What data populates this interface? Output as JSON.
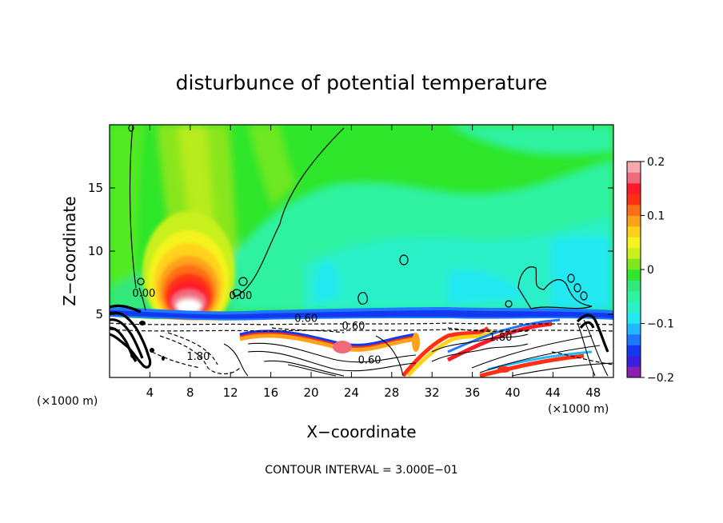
{
  "chart_data": {
    "type": "heatmap",
    "title": "disturbunce of potential temperature",
    "xlabel": "X−coordinate",
    "ylabel": "Z−coordinate",
    "x_unit": "(×1000 m)",
    "z_unit": "(×1000 m)",
    "xlim": [
      0,
      50
    ],
    "ylim": [
      0,
      20
    ],
    "xticks": [
      4,
      8,
      12,
      16,
      20,
      24,
      28,
      32,
      36,
      40,
      44,
      48
    ],
    "yticks": [
      5,
      10,
      15
    ],
    "xtick_labels": [
      "4",
      "8",
      "12",
      "16",
      "20",
      "24",
      "28",
      "32",
      "36",
      "40",
      "44",
      "48"
    ],
    "ytick_labels": [
      "5",
      "10",
      "15"
    ],
    "colorbar": {
      "range": [
        -0.2,
        0.2
      ],
      "ticks": [
        -0.2,
        -0.1,
        0,
        0.1,
        0.2
      ],
      "tick_labels": [
        "−0.2",
        "−0.1",
        "0",
        "0.1",
        "0.2"
      ],
      "colors": [
        "#8a1fb0",
        "#3a1fe0",
        "#1238f0",
        "#1e78ff",
        "#22b8ff",
        "#22e8f2",
        "#2af0c8",
        "#2ef2a0",
        "#32e87a",
        "#2ee62a",
        "#7ee81e",
        "#c8f01a",
        "#f4f41e",
        "#ffd21a",
        "#ffa21a",
        "#ff6e14",
        "#ff3014",
        "#ff1a2a",
        "#f06a7e",
        "#f5a8ae"
      ]
    },
    "contour_labels": [
      {
        "text": "0.60",
        "x": 19.5,
        "z": 4.4
      },
      {
        "text": "1.80",
        "x": 8.8,
        "z": 1.4
      },
      {
        "text": "0.60",
        "x": 25.8,
        "z": 1.1
      },
      {
        "text": "0.00",
        "x": 3.4,
        "z": 6.4
      },
      {
        "text": "0.00",
        "x": 13.0,
        "z": 6.2
      },
      {
        "text": "0.60",
        "x": 24.2,
        "z": 3.8
      },
      {
        "text": "1.80",
        "x": 38.8,
        "z": 2.9
      }
    ],
    "grid": false
  },
  "footer": {
    "contour_interval": "CONTOUR INTERVAL = 3.000E−01"
  }
}
